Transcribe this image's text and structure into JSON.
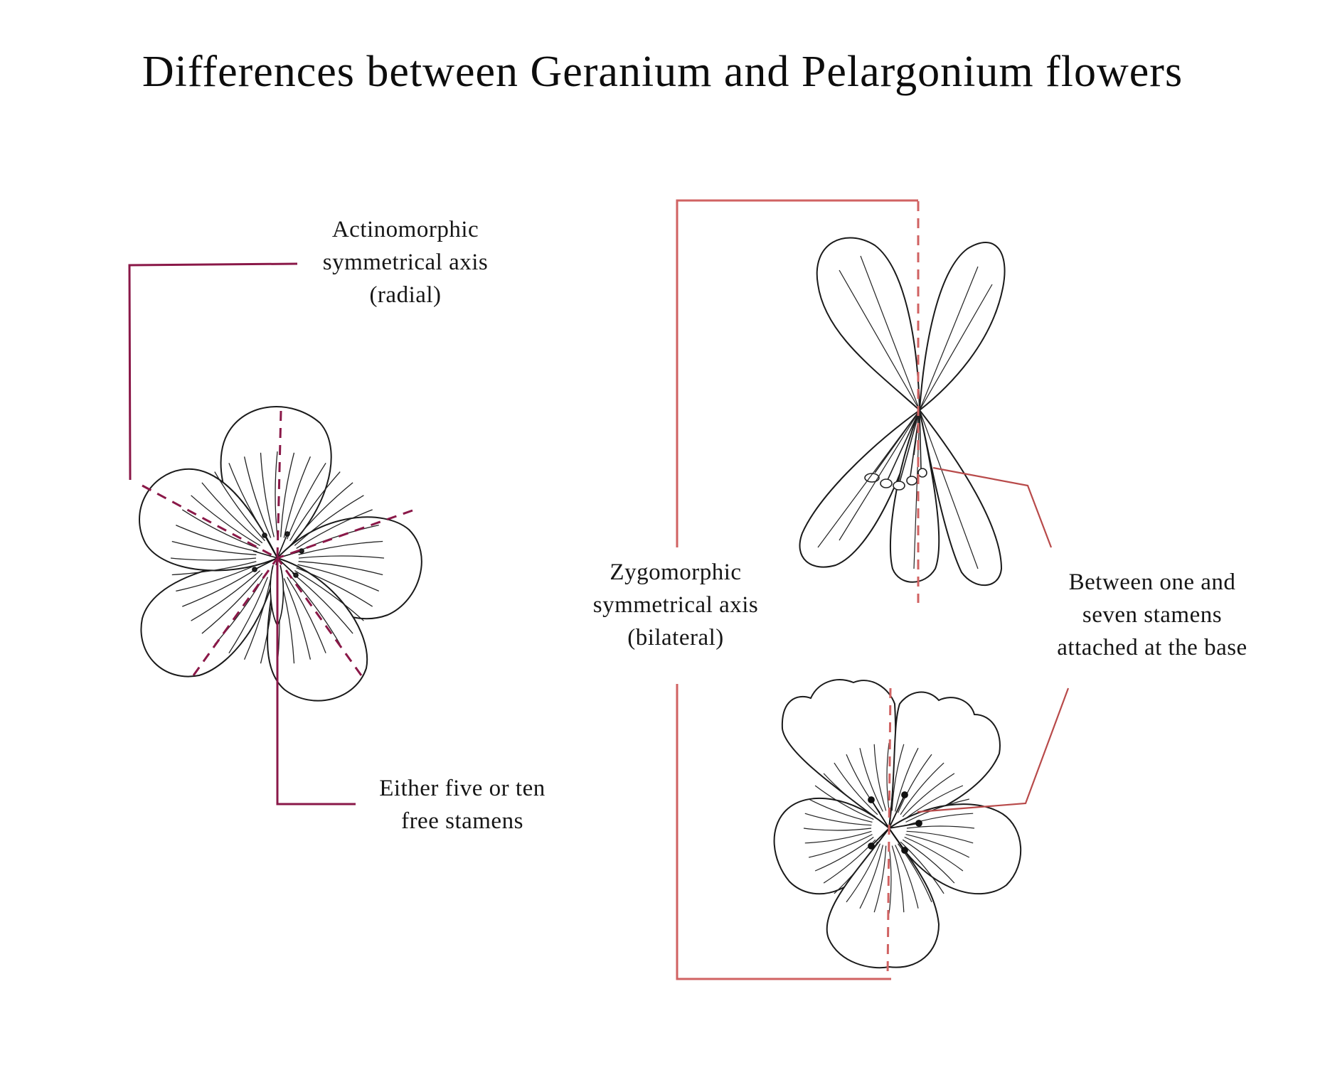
{
  "title": "Differences between Geranium and Pelargonium flowers",
  "colors": {
    "geranium_axis": "#8a1848",
    "pelargonium_axis": "#d06262",
    "ink": "#1a1a1a"
  },
  "geranium": {
    "symmetry_label": [
      "Actinomorphic",
      "symmetrical axis",
      "(radial)"
    ],
    "stamens_label": [
      "Either five or ten",
      "free stamens"
    ]
  },
  "pelargonium": {
    "symmetry_label": [
      "Zygomorphic",
      "symmetrical axis",
      "(bilateral)"
    ],
    "stamens_label": [
      "Between one and",
      "seven stamens",
      "attached at the base"
    ]
  }
}
